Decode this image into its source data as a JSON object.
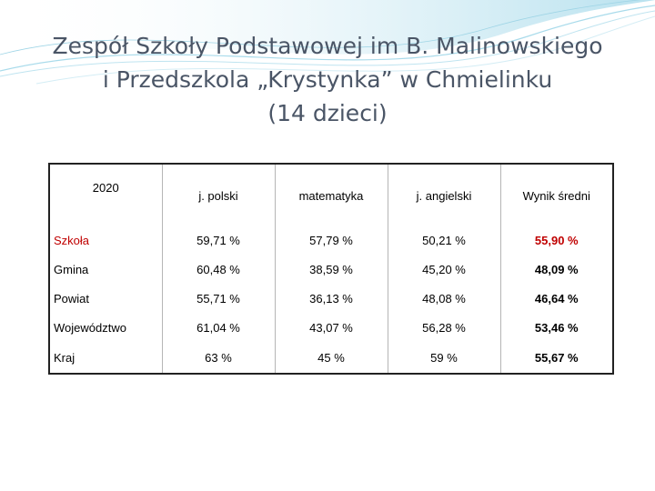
{
  "title": {
    "line1": "Zespół Szkoły Podstawowej im B. Malinowskiego",
    "line2": "i Przedszkola „Krystynka” w Chmielinku",
    "line3": "(14 dzieci)"
  },
  "table": {
    "headers": [
      "2020",
      "j. polski",
      "matematyka",
      "j. angielski",
      "Wynik średni"
    ],
    "rows": [
      {
        "label": "Szkoła",
        "values": [
          "59,71 %",
          "57,79 %",
          "50,21 %",
          "55,90 %"
        ]
      },
      {
        "label": "Gmina",
        "values": [
          "60,48 %",
          "38,59 %",
          "45,20 %",
          "48,09 %"
        ]
      },
      {
        "label": "Powiat",
        "values": [
          "55,71 %",
          "36,13 %",
          "48,08 %",
          "46,64 %"
        ]
      },
      {
        "label": "Województwo",
        "values": [
          "61,04 %",
          "43,07 %",
          "56,28 %",
          "53,46 %"
        ]
      },
      {
        "label": "Kraj",
        "values": [
          "63 %",
          "45 %",
          "59 %",
          "55,67 %"
        ]
      }
    ]
  },
  "colors": {
    "title": "#4a5566",
    "highlight": "#c00000",
    "decoration": "#8ecfe2"
  }
}
